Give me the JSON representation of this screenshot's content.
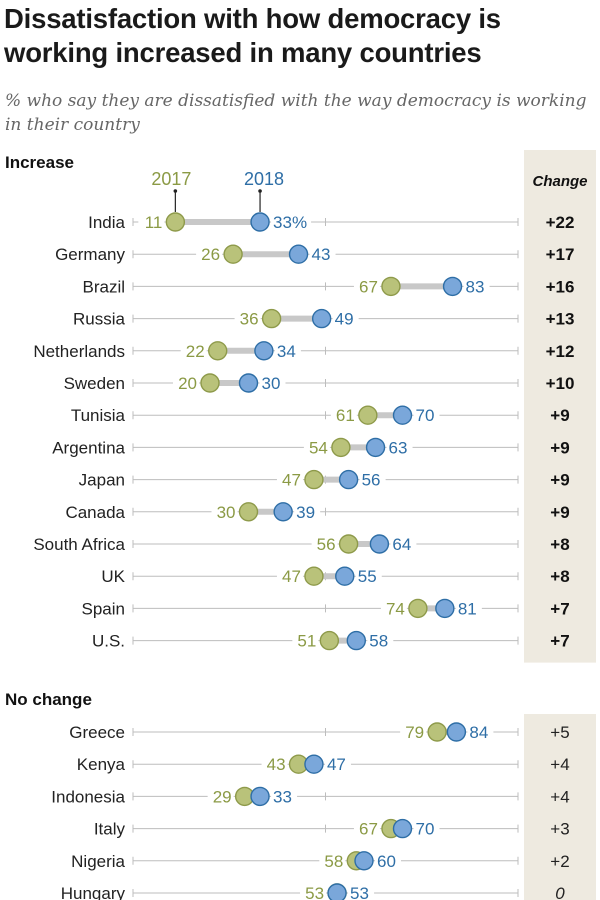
{
  "title": "Dissatisfaction with how democracy is working increased in many countries",
  "subtitle": "% who say they are dissatisfied with the way democracy is working in their country",
  "colors": {
    "y2017_fill": "#b9c27a",
    "y2017_stroke": "#8e9a4a",
    "y2017_text": "#8b9a45",
    "y2018_fill": "#7aa7da",
    "y2018_stroke": "#2e6ea6",
    "y2018_text": "#2e6ea6",
    "connector": "#c8c8c8",
    "axis": "#bdbdbd",
    "change_bg": "#eeeae0"
  },
  "chart_data": {
    "type": "dumbbell",
    "xlim": [
      0,
      100
    ],
    "series_names": [
      "2017",
      "2018"
    ],
    "change_header": "Change",
    "percent_suffix": "%",
    "sections": [
      {
        "label": "Increase",
        "change_bold": true,
        "rows": [
          {
            "country": "India",
            "v2017": 11,
            "v2018": 33,
            "change": "+22"
          },
          {
            "country": "Germany",
            "v2017": 26,
            "v2018": 43,
            "change": "+17"
          },
          {
            "country": "Brazil",
            "v2017": 67,
            "v2018": 83,
            "change": "+16"
          },
          {
            "country": "Russia",
            "v2017": 36,
            "v2018": 49,
            "change": "+13"
          },
          {
            "country": "Netherlands",
            "v2017": 22,
            "v2018": 34,
            "change": "+12"
          },
          {
            "country": "Sweden",
            "v2017": 20,
            "v2018": 30,
            "change": "+10"
          },
          {
            "country": "Tunisia",
            "v2017": 61,
            "v2018": 70,
            "change": "+9"
          },
          {
            "country": "Argentina",
            "v2017": 54,
            "v2018": 63,
            "change": "+9"
          },
          {
            "country": "Japan",
            "v2017": 47,
            "v2018": 56,
            "change": "+9"
          },
          {
            "country": "Canada",
            "v2017": 30,
            "v2018": 39,
            "change": "+9"
          },
          {
            "country": "South Africa",
            "v2017": 56,
            "v2018": 64,
            "change": "+8"
          },
          {
            "country": "UK",
            "v2017": 47,
            "v2018": 55,
            "change": "+8"
          },
          {
            "country": "Spain",
            "v2017": 74,
            "v2018": 81,
            "change": "+7"
          },
          {
            "country": "U.S.",
            "v2017": 51,
            "v2018": 58,
            "change": "+7"
          }
        ]
      },
      {
        "label": "No change",
        "change_bold": false,
        "rows": [
          {
            "country": "Greece",
            "v2017": 79,
            "v2018": 84,
            "change": "+5"
          },
          {
            "country": "Kenya",
            "v2017": 43,
            "v2018": 47,
            "change": "+4"
          },
          {
            "country": "Indonesia",
            "v2017": 29,
            "v2018": 33,
            "change": "+4"
          },
          {
            "country": "Italy",
            "v2017": 67,
            "v2018": 70,
            "change": "+3"
          },
          {
            "country": "Nigeria",
            "v2017": 58,
            "v2018": 60,
            "change": "+2"
          },
          {
            "country": "Hungary",
            "v2017": 53,
            "v2018": 53,
            "change": "0"
          }
        ]
      }
    ]
  }
}
